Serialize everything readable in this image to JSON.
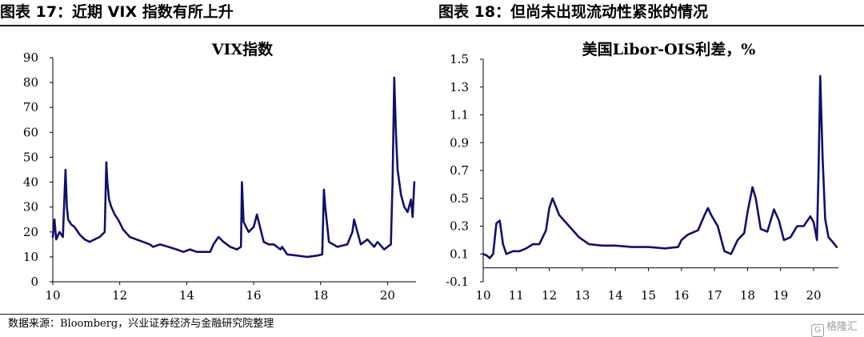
{
  "figures": {
    "left_header": "图表 17：近期 VIX 指数有所上升",
    "right_header": "图表 18：但尚未出现流动性紧张的情况"
  },
  "footer": {
    "source": "数据来源：Bloomberg，兴业证券经济与金融研究院整理",
    "watermark": "格隆汇"
  },
  "colors": {
    "series": "#10106e",
    "axis": "#000000"
  },
  "chart_data": [
    {
      "type": "line",
      "title": "VIX指数",
      "xlabel": "",
      "ylabel": "",
      "xlim": [
        2010,
        2020.85
      ],
      "ylim": [
        0,
        90
      ],
      "xticks": [
        2010,
        2012,
        2014,
        2016,
        2018,
        2020
      ],
      "xtick_labels": [
        "10",
        "12",
        "14",
        "16",
        "18",
        "20"
      ],
      "yticks": [
        0,
        10,
        20,
        30,
        40,
        50,
        60,
        70,
        80,
        90
      ],
      "series": [
        {
          "x": [
            2010.0,
            2010.05,
            2010.1,
            2010.2,
            2010.3,
            2010.38,
            2010.42,
            2010.46,
            2010.55,
            2010.65,
            2010.8,
            2010.95,
            2011.1,
            2011.25,
            2011.4,
            2011.55,
            2011.6,
            2011.63,
            2011.68,
            2011.75,
            2011.85,
            2011.95,
            2012.1,
            2012.3,
            2012.5,
            2012.7,
            2012.9,
            2013.0,
            2013.2,
            2013.45,
            2013.7,
            2013.9,
            2014.1,
            2014.3,
            2014.5,
            2014.7,
            2014.8,
            2014.95,
            2015.1,
            2015.3,
            2015.5,
            2015.62,
            2015.65,
            2015.7,
            2015.85,
            2016.0,
            2016.1,
            2016.3,
            2016.45,
            2016.6,
            2016.8,
            2016.85,
            2017.0,
            2017.3,
            2017.6,
            2017.9,
            2018.05,
            2018.1,
            2018.14,
            2018.25,
            2018.5,
            2018.8,
            2018.95,
            2019.0,
            2019.2,
            2019.4,
            2019.6,
            2019.7,
            2019.9,
            2020.0,
            2020.1,
            2020.15,
            2020.2,
            2020.25,
            2020.3,
            2020.4,
            2020.5,
            2020.6,
            2020.7,
            2020.75,
            2020.8
          ],
          "y": [
            18,
            25,
            17,
            20,
            18,
            45,
            30,
            25,
            23,
            22,
            19,
            17,
            16,
            17,
            18,
            20,
            48,
            40,
            33,
            30,
            27,
            25,
            21,
            18,
            17,
            16,
            15,
            14,
            15,
            14,
            13,
            12,
            13,
            12,
            12,
            12,
            15,
            18,
            16,
            14,
            13,
            14,
            40,
            24,
            20,
            22,
            27,
            16,
            15,
            15,
            13,
            14,
            11,
            10.5,
            10,
            10.5,
            11,
            37,
            30,
            16,
            14,
            15,
            20,
            25,
            15,
            17,
            14,
            16,
            13,
            14,
            15,
            40,
            82,
            60,
            45,
            35,
            30,
            28,
            33,
            26,
            40
          ]
        }
      ]
    },
    {
      "type": "line",
      "title": "美国Libor-OIS利差，%",
      "xlabel": "",
      "ylabel": "",
      "xlim": [
        2010,
        2020.75
      ],
      "ylim": [
        -0.1,
        1.5
      ],
      "xticks": [
        2010,
        2011,
        2012,
        2013,
        2014,
        2015,
        2016,
        2017,
        2018,
        2019,
        2020
      ],
      "xtick_labels": [
        "10",
        "11",
        "12",
        "13",
        "14",
        "15",
        "16",
        "17",
        "18",
        "19",
        "20"
      ],
      "yticks": [
        -0.1,
        0.1,
        0.3,
        0.5,
        0.7,
        0.9,
        1.1,
        1.3,
        1.5
      ],
      "ytick_labels": [
        "-0.1",
        "0.1",
        "0.3",
        "0.5",
        "0.7",
        "0.9",
        "1.1",
        "1.3",
        "1.5"
      ],
      "series": [
        {
          "x": [
            2010.0,
            2010.1,
            2010.2,
            2010.3,
            2010.4,
            2010.5,
            2010.6,
            2010.7,
            2010.9,
            2011.1,
            2011.3,
            2011.5,
            2011.7,
            2011.9,
            2012.0,
            2012.1,
            2012.3,
            2012.6,
            2012.9,
            2013.2,
            2013.6,
            2014.0,
            2014.5,
            2015.0,
            2015.5,
            2015.9,
            2016.0,
            2016.2,
            2016.5,
            2016.7,
            2016.8,
            2016.9,
            2017.1,
            2017.3,
            2017.5,
            2017.7,
            2017.9,
            2018.0,
            2018.15,
            2018.25,
            2018.4,
            2018.6,
            2018.8,
            2018.95,
            2019.1,
            2019.3,
            2019.5,
            2019.7,
            2019.9,
            2020.0,
            2020.1,
            2020.15,
            2020.2,
            2020.27,
            2020.35,
            2020.45,
            2020.6,
            2020.7
          ],
          "y": [
            0.1,
            0.09,
            0.07,
            0.1,
            0.32,
            0.34,
            0.17,
            0.1,
            0.12,
            0.12,
            0.14,
            0.17,
            0.17,
            0.27,
            0.43,
            0.5,
            0.38,
            0.3,
            0.22,
            0.17,
            0.16,
            0.16,
            0.15,
            0.15,
            0.14,
            0.15,
            0.2,
            0.24,
            0.27,
            0.38,
            0.43,
            0.38,
            0.3,
            0.12,
            0.1,
            0.2,
            0.25,
            0.4,
            0.58,
            0.5,
            0.28,
            0.26,
            0.42,
            0.34,
            0.2,
            0.22,
            0.3,
            0.3,
            0.37,
            0.33,
            0.2,
            0.7,
            1.38,
            0.8,
            0.35,
            0.22,
            0.18,
            0.15
          ]
        }
      ]
    }
  ]
}
